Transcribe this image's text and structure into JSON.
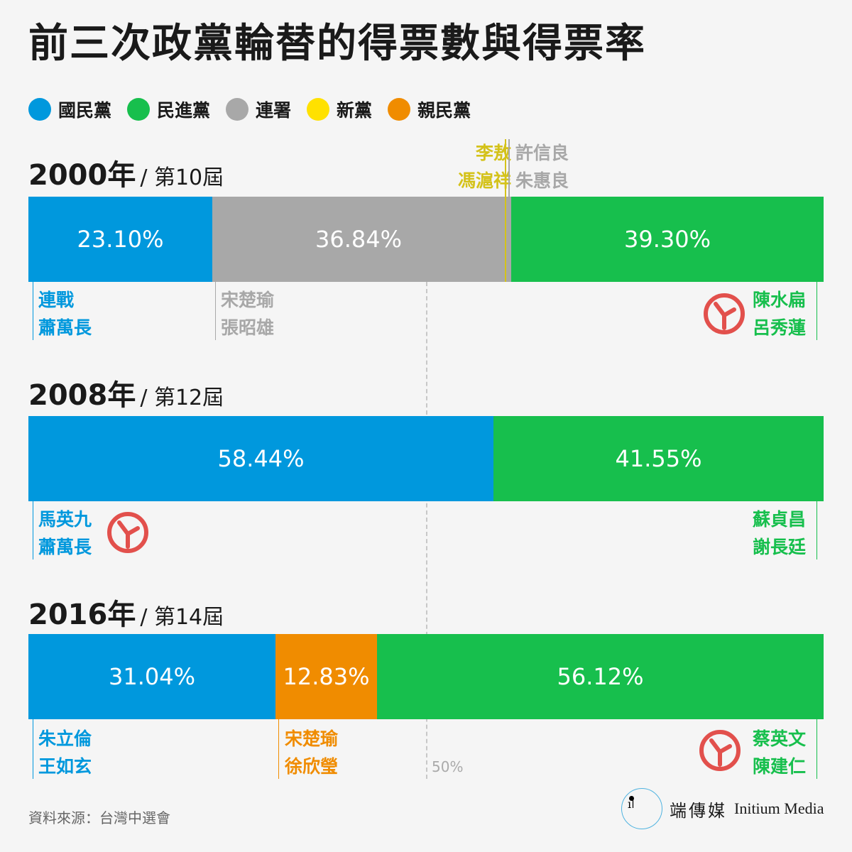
{
  "title": "前三次政黨輪替的得票數與得票率",
  "legend": [
    {
      "label": "國民黨",
      "color": "#0098dd"
    },
    {
      "label": "民進黨",
      "color": "#17bf4d"
    },
    {
      "label": "連署",
      "color": "#a8a8a8"
    },
    {
      "label": "新黨",
      "color": "#ffe100"
    },
    {
      "label": "親民黨",
      "color": "#f08c00"
    }
  ],
  "chart_data": {
    "type": "bar",
    "stacked": true,
    "xlim": [
      0,
      100
    ],
    "reference_line": {
      "value": 50,
      "label": "50%"
    },
    "elections": [
      {
        "year_label": "2000年",
        "term_label": "/ 第10屆",
        "segments": [
          {
            "party": "國民黨",
            "value": 23.1,
            "label": "23.10%",
            "color": "#0098dd",
            "candidates": [
              "連戰",
              "蕭萬長"
            ],
            "winner": false
          },
          {
            "party": "連署",
            "value": 36.84,
            "label": "36.84%",
            "color": "#a8a8a8",
            "candidates": [
              "宋楚瑜",
              "張昭雄"
            ],
            "winner": false
          },
          {
            "party": "新黨",
            "value": 0.13,
            "label": "",
            "color": "#ffe100",
            "candidates": [
              "李敖",
              "馮滬祥"
            ],
            "winner": false
          },
          {
            "party": "連署",
            "value": 0.63,
            "label": "",
            "color": "#a8a8a8",
            "candidates": [
              "許信良",
              "朱惠良"
            ],
            "winner": false
          },
          {
            "party": "民進黨",
            "value": 39.3,
            "label": "39.30%",
            "color": "#17bf4d",
            "candidates": [
              "陳水扁",
              "呂秀蓮"
            ],
            "winner": true
          }
        ]
      },
      {
        "year_label": "2008年",
        "term_label": "/ 第12屆",
        "segments": [
          {
            "party": "國民黨",
            "value": 58.44,
            "label": "58.44%",
            "color": "#0098dd",
            "candidates": [
              "馬英九",
              "蕭萬長"
            ],
            "winner": true
          },
          {
            "party": "民進黨",
            "value": 41.55,
            "label": "41.55%",
            "color": "#17bf4d",
            "candidates": [
              "蘇貞昌",
              "謝長廷"
            ],
            "winner": false
          }
        ]
      },
      {
        "year_label": "2016年",
        "term_label": "/ 第14屆",
        "segments": [
          {
            "party": "國民黨",
            "value": 31.04,
            "label": "31.04%",
            "color": "#0098dd",
            "candidates": [
              "朱立倫",
              "王如玄"
            ],
            "winner": false
          },
          {
            "party": "親民黨",
            "value": 12.83,
            "label": "12.83%",
            "color": "#f08c00",
            "candidates": [
              "宋楚瑜",
              "徐欣瑩"
            ],
            "winner": false
          },
          {
            "party": "民進黨",
            "value": 56.12,
            "label": "56.12%",
            "color": "#17bf4d",
            "candidates": [
              "蔡英文",
              "陳建仁"
            ],
            "winner": true
          }
        ]
      }
    ]
  },
  "minor_candidate_colors": {
    "新黨": "#d4c21a",
    "連署": "#a8a8a8"
  },
  "footer": {
    "source": "資料來源：台灣中選會",
    "brand_cn": "端傳媒",
    "brand_en": "Initium Media",
    "logo_glyph": "ıǀ"
  }
}
